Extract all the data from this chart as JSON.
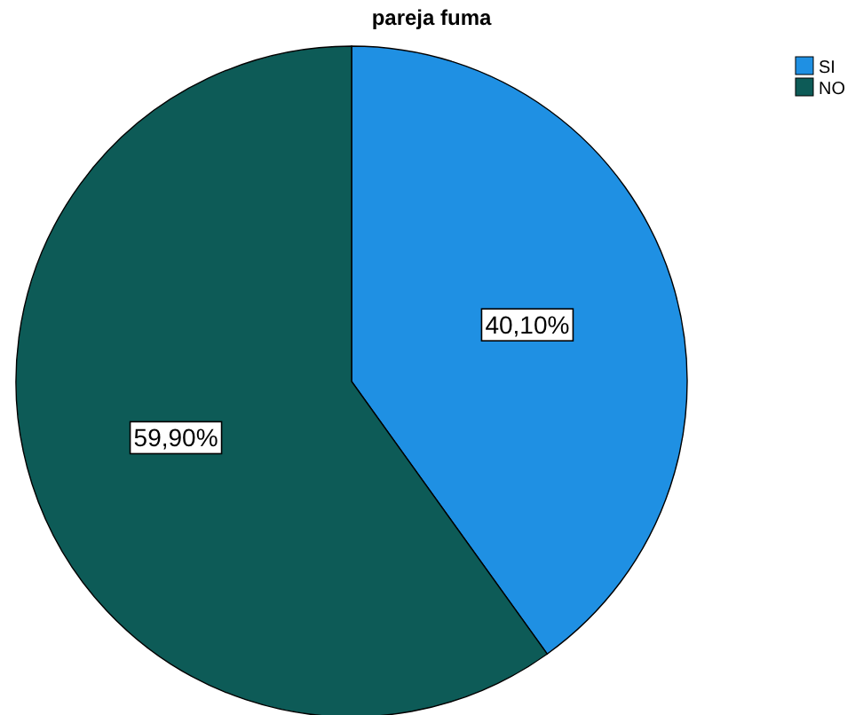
{
  "chart_data": {
    "type": "pie",
    "title": "pareja fuma",
    "categories": [
      "SI",
      "NO"
    ],
    "values": [
      40.1,
      59.9
    ],
    "colors": [
      "#1f90e3",
      "#0d5b57"
    ],
    "value_labels": [
      "40,10%",
      "59,90%"
    ],
    "legend": "top right"
  }
}
